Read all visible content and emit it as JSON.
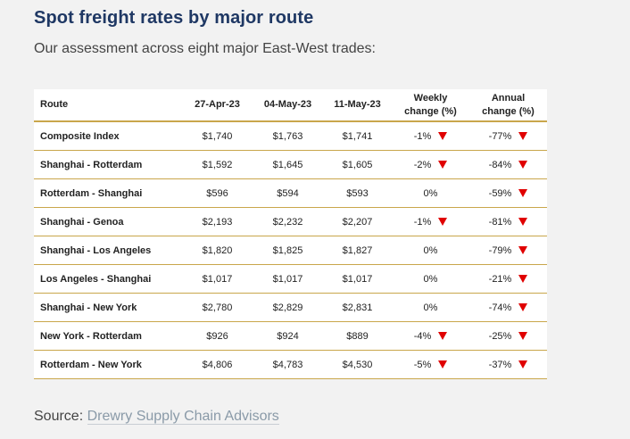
{
  "title": "Spot freight rates by major route",
  "subtitle": "Our assessment across eight major East-West trades:",
  "table": {
    "headers": {
      "route": "Route",
      "d1": "27-Apr-23",
      "d2": "04-May-23",
      "d3": "11-May-23",
      "weekly_l1": "Weekly",
      "weekly_l2": "change (%)",
      "annual_l1": "Annual",
      "annual_l2": "change (%)"
    },
    "rows": [
      {
        "route": "Composite Index",
        "d1": "$1,740",
        "d2": "$1,763",
        "d3": "$1,741",
        "weekly": "-1%",
        "weekly_down": true,
        "annual": "-77%",
        "annual_down": true
      },
      {
        "route": "Shanghai - Rotterdam",
        "d1": "$1,592",
        "d2": "$1,645",
        "d3": "$1,605",
        "weekly": "-2%",
        "weekly_down": true,
        "annual": "-84%",
        "annual_down": true
      },
      {
        "route": "Rotterdam - Shanghai",
        "d1": "$596",
        "d2": "$594",
        "d3": "$593",
        "weekly": "0%",
        "weekly_down": false,
        "annual": "-59%",
        "annual_down": true
      },
      {
        "route": "Shanghai - Genoa",
        "d1": "$2,193",
        "d2": "$2,232",
        "d3": "$2,207",
        "weekly": "-1%",
        "weekly_down": true,
        "annual": "-81%",
        "annual_down": true
      },
      {
        "route": "Shanghai - Los Angeles",
        "d1": "$1,820",
        "d2": "$1,825",
        "d3": "$1,827",
        "weekly": "0%",
        "weekly_down": false,
        "annual": "-79%",
        "annual_down": true
      },
      {
        "route": "Los Angeles - Shanghai",
        "d1": "$1,017",
        "d2": "$1,017",
        "d3": "$1,017",
        "weekly": "0%",
        "weekly_down": false,
        "annual": "-21%",
        "annual_down": true
      },
      {
        "route": "Shanghai - New York",
        "d1": "$2,780",
        "d2": "$2,829",
        "d3": "$2,831",
        "weekly": "0%",
        "weekly_down": false,
        "annual": "-74%",
        "annual_down": true
      },
      {
        "route": "New York - Rotterdam",
        "d1": "$926",
        "d2": "$924",
        "d3": "$889",
        "weekly": "-4%",
        "weekly_down": true,
        "annual": "-25%",
        "annual_down": true
      },
      {
        "route": "Rotterdam - New York",
        "d1": "$4,806",
        "d2": "$4,783",
        "d3": "$4,530",
        "weekly": "-5%",
        "weekly_down": true,
        "annual": "-37%",
        "annual_down": true
      }
    ]
  },
  "source": {
    "label": "Source:",
    "link_text": "Drewry Supply Chain Advisors"
  },
  "colors": {
    "title": "#1f3864",
    "rule": "#c9a64b",
    "down_arrow": "#e00000",
    "link": "#8a9aa8"
  },
  "icons": {
    "down": "down-triangle-icon"
  }
}
